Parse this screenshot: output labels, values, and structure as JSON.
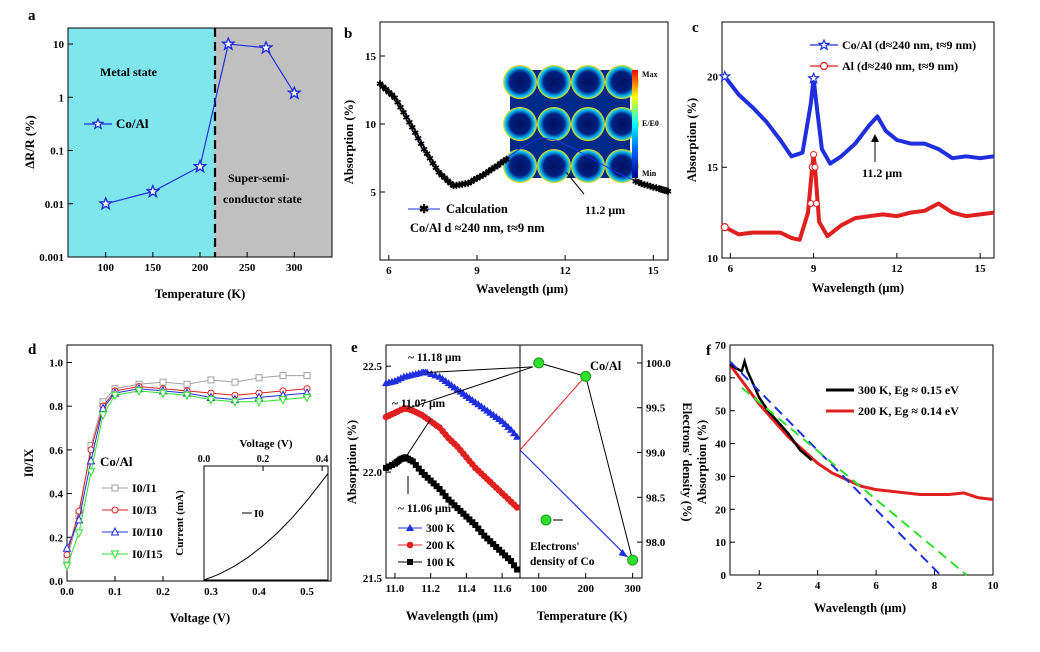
{
  "colors": {
    "blue": "#1f2fe0",
    "red": "#e01f1f",
    "black": "#000000",
    "green": "#2ee02e",
    "gray": "#a0a0a0",
    "cyan": "#7fe6ee",
    "metal_gray": "#c0c0c0"
  },
  "chart_data": [
    {
      "panel": "a",
      "type": "line",
      "ylog": true,
      "xlim": [
        60,
        340
      ],
      "ylim": [
        0.001,
        20
      ],
      "xticks": [
        "100",
        "150",
        "200",
        "250",
        "300"
      ],
      "yticks": [
        "0.001",
        "0.01",
        "0.1",
        "1",
        "10"
      ],
      "xlabel": "Temperature (K)",
      "ylabel": "ΔR/R (%)",
      "regions": [
        {
          "label": "Metal state",
          "from": 60,
          "to": 213
        },
        {
          "label": "Super-semi-conductor state",
          "line1": "Super-semi-",
          "line2": "conductor state",
          "from": 213,
          "to": 340
        }
      ],
      "series": [
        {
          "name": "Co/Al",
          "x": [
            100,
            150,
            200,
            230,
            270,
            300
          ],
          "y": [
            0.01,
            0.017,
            0.05,
            10,
            8.5,
            1.2
          ]
        }
      ]
    },
    {
      "panel": "b",
      "type": "line",
      "xlim": [
        5.7,
        15.5
      ],
      "ylim": [
        0,
        17.5
      ],
      "xticks": [
        "6",
        "9",
        "12",
        "15"
      ],
      "yticks": [
        "5",
        "10",
        "15"
      ],
      "xlabel": "Wavelength (μm)",
      "ylabel": "Absorption (%)",
      "legend": "Calculation",
      "sublabel": "Co/Al d ≈240 nm, t≈9 nm",
      "annotation": "11.2 μm",
      "colorbar": {
        "max": "Max",
        "mid": "E/E0",
        "min": "Min"
      },
      "series": [
        {
          "name": "Calculation",
          "x": [
            5.7,
            6.2,
            6.7,
            7.2,
            7.7,
            8.2,
            8.7,
            9.2,
            9.7,
            10.2,
            10.7,
            11.2,
            11.7,
            12.2,
            12.7,
            13.2,
            13.7,
            14.2,
            14.7,
            15.2,
            15.5
          ],
          "y": [
            13.0,
            12.0,
            10.2,
            8.2,
            6.5,
            5.5,
            5.7,
            6.3,
            7.0,
            7.8,
            8.5,
            9.0,
            8.8,
            8.3,
            7.7,
            7.1,
            6.5,
            6.0,
            5.6,
            5.3,
            5.1
          ]
        }
      ]
    },
    {
      "panel": "c",
      "type": "line",
      "xlim": [
        5.7,
        15.5
      ],
      "ylim": [
        10,
        23
      ],
      "xticks": [
        "6",
        "9",
        "12",
        "15"
      ],
      "yticks": [
        "10",
        "15",
        "20"
      ],
      "xlabel": "Wavelength (μm)",
      "ylabel": "Absorption (%)",
      "annotation": "11.2 μm",
      "series": [
        {
          "name": "Co/Al (d≈240 nm, t≈9 nm)",
          "x": [
            5.8,
            6.3,
            6.8,
            7.3,
            7.8,
            8.2,
            8.6,
            8.9,
            9.0,
            9.1,
            9.3,
            9.6,
            10.0,
            10.5,
            11.0,
            11.3,
            11.6,
            12.0,
            12.5,
            13.0,
            13.5,
            14.0,
            14.5,
            15.0,
            15.5
          ],
          "y": [
            20.0,
            19.0,
            18.3,
            17.5,
            16.5,
            15.6,
            15.8,
            18.5,
            19.9,
            18.5,
            16.0,
            15.2,
            15.6,
            16.3,
            17.3,
            17.8,
            17.0,
            16.5,
            16.3,
            16.3,
            16.0,
            15.5,
            15.6,
            15.5,
            15.6
          ]
        },
        {
          "name": "Al (d≈240 nm, t≈9 nm)",
          "x": [
            5.8,
            6.3,
            6.8,
            7.3,
            7.8,
            8.2,
            8.5,
            8.8,
            8.95,
            9.0,
            9.05,
            9.2,
            9.5,
            10.0,
            10.5,
            11.0,
            11.5,
            12.0,
            12.5,
            13.0,
            13.5,
            14.0,
            14.5,
            15.0,
            15.5
          ],
          "y": [
            11.7,
            11.3,
            11.4,
            11.4,
            11.4,
            11.1,
            11.0,
            12.5,
            15.0,
            15.7,
            15.0,
            12.0,
            11.2,
            11.8,
            12.2,
            12.3,
            12.4,
            12.3,
            12.5,
            12.6,
            13.0,
            12.5,
            12.3,
            12.4,
            12.5
          ]
        }
      ]
    },
    {
      "panel": "d",
      "type": "line",
      "xlim": [
        0,
        0.55
      ],
      "ylim": [
        0,
        1.08
      ],
      "xticks": [
        "0.0",
        "0.1",
        "0.2",
        "0.3",
        "0.4",
        "0.5"
      ],
      "yticks": [
        "0.0",
        "0.2",
        "0.4",
        "0.6",
        "0.8",
        "1.0"
      ],
      "xlabel": "Voltage (V)",
      "ylabel": "I0/IX",
      "title": "Co/Al",
      "series": [
        {
          "name": "I0/I1",
          "x": [
            0.0,
            0.025,
            0.05,
            0.075,
            0.1,
            0.15,
            0.2,
            0.25,
            0.3,
            0.35,
            0.4,
            0.45,
            0.5
          ],
          "y": [
            0.1,
            0.3,
            0.62,
            0.82,
            0.88,
            0.9,
            0.91,
            0.9,
            0.92,
            0.91,
            0.93,
            0.94,
            0.94
          ]
        },
        {
          "name": "I0/I3",
          "x": [
            0.0,
            0.025,
            0.05,
            0.075,
            0.1,
            0.15,
            0.2,
            0.25,
            0.3,
            0.35,
            0.4,
            0.45,
            0.5
          ],
          "y": [
            0.12,
            0.32,
            0.6,
            0.8,
            0.87,
            0.89,
            0.88,
            0.87,
            0.86,
            0.85,
            0.86,
            0.87,
            0.88
          ]
        },
        {
          "name": "I0/I10",
          "x": [
            0.0,
            0.025,
            0.05,
            0.075,
            0.1,
            0.15,
            0.2,
            0.25,
            0.3,
            0.35,
            0.4,
            0.45,
            0.5
          ],
          "y": [
            0.15,
            0.28,
            0.55,
            0.79,
            0.86,
            0.88,
            0.87,
            0.86,
            0.84,
            0.83,
            0.84,
            0.85,
            0.86
          ]
        },
        {
          "name": "I0/I15",
          "x": [
            0.0,
            0.025,
            0.05,
            0.075,
            0.1,
            0.15,
            0.2,
            0.25,
            0.3,
            0.35,
            0.4,
            0.45,
            0.5
          ],
          "y": [
            0.07,
            0.22,
            0.5,
            0.76,
            0.85,
            0.87,
            0.86,
            0.85,
            0.83,
            0.82,
            0.82,
            0.83,
            0.84
          ]
        }
      ],
      "inset": {
        "xlabel": "Voltage (V)",
        "ylabel": "Current (mA)",
        "xticks": [
          "0.0",
          "0.2",
          "0.4"
        ],
        "xlim": [
          0,
          0.42
        ],
        "ylim": [
          0,
          1.2
        ],
        "label": "I0",
        "series": [
          {
            "name": "I0",
            "x": [
              0,
              0.05,
              0.1,
              0.15,
              0.2,
              0.25,
              0.3,
              0.35,
              0.4,
              0.42
            ],
            "y": [
              0,
              0.06,
              0.14,
              0.24,
              0.36,
              0.5,
              0.66,
              0.84,
              1.04,
              1.12
            ]
          }
        ]
      }
    },
    {
      "panel": "e",
      "type": "line",
      "xlim": [
        10.95,
        11.7
      ],
      "ylim": [
        21.5,
        22.6
      ],
      "xticks": [
        "11.0",
        "11.2",
        "11.4",
        "11.6"
      ],
      "yticks": [
        "21.5",
        "22.0",
        "22.5"
      ],
      "xlabel": "Wavelength (μm)",
      "ylabel": "Absorption (%)",
      "annotations": [
        "~ 11.18 μm",
        "~ 11.07 μm",
        "~ 11.06 μm"
      ],
      "series": [
        {
          "name": "300 K",
          "x": [
            10.95,
            11.0,
            11.05,
            11.1,
            11.15,
            11.18,
            11.25,
            11.3,
            11.35,
            11.4,
            11.45,
            11.5,
            11.55,
            11.6,
            11.65,
            11.7
          ],
          "y": [
            22.42,
            22.43,
            22.45,
            22.46,
            22.47,
            22.47,
            22.45,
            22.42,
            22.39,
            22.36,
            22.33,
            22.3,
            22.27,
            22.24,
            22.2,
            22.15
          ]
        },
        {
          "name": "200 K",
          "x": [
            10.95,
            11.0,
            11.05,
            11.07,
            11.1,
            11.15,
            11.2,
            11.25,
            11.3,
            11.35,
            11.4,
            11.45,
            11.5,
            11.55,
            11.6,
            11.65,
            11.7
          ],
          "y": [
            22.26,
            22.28,
            22.3,
            22.3,
            22.29,
            22.27,
            22.24,
            22.21,
            22.16,
            22.12,
            22.07,
            22.02,
            21.98,
            21.94,
            21.9,
            21.86,
            21.82
          ]
        },
        {
          "name": "100 K",
          "x": [
            10.95,
            11.0,
            11.03,
            11.06,
            11.1,
            11.15,
            11.2,
            11.25,
            11.3,
            11.35,
            11.4,
            11.45,
            11.5,
            11.55,
            11.6,
            11.65,
            11.7
          ],
          "y": [
            22.02,
            22.04,
            22.06,
            22.07,
            22.05,
            22.0,
            21.96,
            21.92,
            21.87,
            21.83,
            21.79,
            21.75,
            21.7,
            21.66,
            21.62,
            21.58,
            21.52
          ]
        }
      ],
      "right": {
        "xlim": [
          60,
          320
        ],
        "ylim": [
          97.6,
          100.2
        ],
        "xticks": [
          "100",
          "200",
          "300"
        ],
        "yticks": [
          "98.0",
          "98.5",
          "99.0",
          "99.5",
          "100.0"
        ],
        "xlabel": "Temperature (K)",
        "ylabel": "Electrons' density (%)",
        "title": "Co/Al",
        "legend": "Electrons' density of Co",
        "legend_line1": "Electrons'",
        "legend_line2": "density of Co",
        "series": [
          {
            "name": "Electrons' density of Co",
            "x": [
              100,
              200,
              300
            ],
            "y": [
              100.0,
              99.85,
              97.8
            ]
          }
        ]
      }
    },
    {
      "panel": "f",
      "type": "line",
      "xlim": [
        1,
        10
      ],
      "ylim": [
        0,
        70
      ],
      "xticks": [
        "2",
        "4",
        "6",
        "8",
        "10"
      ],
      "yticks": [
        "0",
        "10",
        "20",
        "30",
        "40",
        "50",
        "60",
        "70"
      ],
      "xlabel": "Wavelength (μm)",
      "ylabel": "Absorption (%)",
      "series": [
        {
          "name": "300 K, Eg ≈ 0.15 eV",
          "x": [
            1.0,
            1.2,
            1.4,
            1.5,
            1.6,
            1.8,
            2.0,
            2.3,
            2.6,
            3.0,
            3.4,
            3.8
          ],
          "y": [
            64,
            63,
            62,
            65,
            62,
            58,
            54,
            50,
            47,
            43,
            38,
            35
          ]
        },
        {
          "name": "200 K, Eg ≈ 0.14 eV",
          "x": [
            1.0,
            1.5,
            2.0,
            2.5,
            3.0,
            3.5,
            4.0,
            4.5,
            5.0,
            5.5,
            6.0,
            6.5,
            7.0,
            7.5,
            8.0,
            8.5,
            9.0,
            9.5,
            10.0
          ],
          "y": [
            64,
            58,
            52,
            47,
            42,
            38,
            34,
            31,
            29,
            27,
            26,
            25.5,
            25,
            24.5,
            24.5,
            24.5,
            25,
            23.5,
            23
          ]
        },
        {
          "name": "fit 300 K",
          "x": [
            1.0,
            8.2
          ],
          "y": [
            65,
            0
          ]
        },
        {
          "name": "fit 200 K",
          "x": [
            1.4,
            9.1
          ],
          "y": [
            57,
            0
          ]
        }
      ]
    }
  ],
  "panel_labels": {
    "a": "a",
    "b": "b",
    "c": "c",
    "d": "d",
    "e": "e",
    "f": "f"
  }
}
